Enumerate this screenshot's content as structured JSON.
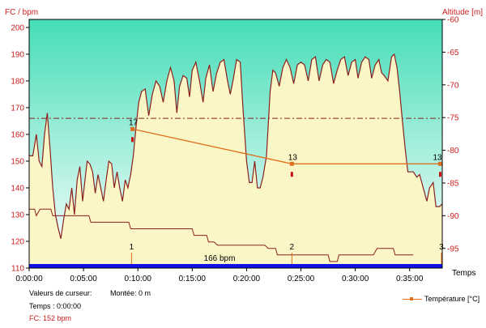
{
  "chart_data": {
    "type": "line",
    "y_left_label": "FC / bpm",
    "y_right_label": "Altitude [m]",
    "x_label": "Temps",
    "xlim": [
      0,
      2280
    ],
    "ylim_left": [
      110,
      203
    ],
    "ylim_right": [
      -60,
      -98
    ],
    "x_ticks": [
      {
        "t": 0,
        "label": "0:00:00"
      },
      {
        "t": 300,
        "label": "0:05:00"
      },
      {
        "t": 600,
        "label": "0:10:00"
      },
      {
        "t": 900,
        "label": "0:15:00"
      },
      {
        "t": 1200,
        "label": "0:20:00"
      },
      {
        "t": 1500,
        "label": "0:25:00"
      },
      {
        "t": 1800,
        "label": "0:30:00"
      },
      {
        "t": 2100,
        "label": "0:35:00"
      }
    ],
    "y_left_ticks": [
      110,
      120,
      130,
      140,
      150,
      160,
      170,
      180,
      190,
      200
    ],
    "y_right_ticks": [
      -60,
      -65,
      -70,
      -75,
      -80,
      -85,
      -90,
      -95
    ],
    "threshold": {
      "value": 166,
      "label": "166 bpm"
    },
    "heart_rate": {
      "name": "FC",
      "color": "#8b2020",
      "fill": "#fbf6c5",
      "points": [
        [
          0,
          152
        ],
        [
          20,
          152
        ],
        [
          40,
          160
        ],
        [
          55,
          150
        ],
        [
          70,
          148
        ],
        [
          85,
          160
        ],
        [
          100,
          168
        ],
        [
          115,
          155
        ],
        [
          130,
          140
        ],
        [
          145,
          130
        ],
        [
          160,
          125
        ],
        [
          175,
          121
        ],
        [
          190,
          128
        ],
        [
          205,
          134
        ],
        [
          220,
          132
        ],
        [
          235,
          140
        ],
        [
          250,
          130
        ],
        [
          265,
          143
        ],
        [
          280,
          148
        ],
        [
          295,
          135
        ],
        [
          305,
          141
        ],
        [
          320,
          150
        ],
        [
          335,
          149
        ],
        [
          350,
          146
        ],
        [
          365,
          138
        ],
        [
          380,
          145
        ],
        [
          395,
          140
        ],
        [
          410,
          135
        ],
        [
          425,
          143
        ],
        [
          440,
          150
        ],
        [
          455,
          149
        ],
        [
          470,
          140
        ],
        [
          485,
          146
        ],
        [
          500,
          140
        ],
        [
          515,
          135
        ],
        [
          530,
          143
        ],
        [
          545,
          140
        ],
        [
          560,
          145
        ],
        [
          575,
          152
        ],
        [
          590,
          163
        ],
        [
          605,
          172
        ],
        [
          620,
          176
        ],
        [
          640,
          177
        ],
        [
          660,
          167
        ],
        [
          680,
          175
        ],
        [
          700,
          180
        ],
        [
          720,
          178
        ],
        [
          740,
          172
        ],
        [
          760,
          180
        ],
        [
          780,
          185
        ],
        [
          800,
          180
        ],
        [
          815,
          168
        ],
        [
          830,
          178
        ],
        [
          850,
          182
        ],
        [
          870,
          181
        ],
        [
          885,
          174
        ],
        [
          900,
          184
        ],
        [
          920,
          187
        ],
        [
          940,
          180
        ],
        [
          960,
          172
        ],
        [
          975,
          181
        ],
        [
          995,
          186
        ],
        [
          1015,
          176
        ],
        [
          1035,
          183
        ],
        [
          1055,
          187
        ],
        [
          1075,
          188
        ],
        [
          1095,
          180
        ],
        [
          1110,
          175
        ],
        [
          1125,
          180
        ],
        [
          1145,
          188
        ],
        [
          1165,
          187
        ],
        [
          1180,
          170
        ],
        [
          1200,
          150
        ],
        [
          1215,
          142
        ],
        [
          1230,
          142
        ],
        [
          1245,
          150
        ],
        [
          1260,
          140
        ],
        [
          1275,
          140
        ],
        [
          1290,
          144
        ],
        [
          1310,
          152
        ],
        [
          1330,
          176
        ],
        [
          1345,
          184
        ],
        [
          1360,
          183
        ],
        [
          1380,
          178
        ],
        [
          1400,
          185
        ],
        [
          1420,
          188
        ],
        [
          1440,
          185
        ],
        [
          1460,
          179
        ],
        [
          1480,
          186
        ],
        [
          1500,
          187
        ],
        [
          1520,
          186
        ],
        [
          1540,
          180
        ],
        [
          1560,
          188
        ],
        [
          1580,
          189
        ],
        [
          1600,
          180
        ],
        [
          1620,
          186
        ],
        [
          1640,
          188
        ],
        [
          1660,
          187
        ],
        [
          1680,
          179
        ],
        [
          1700,
          184
        ],
        [
          1720,
          188
        ],
        [
          1740,
          189
        ],
        [
          1760,
          182
        ],
        [
          1780,
          187
        ],
        [
          1800,
          188
        ],
        [
          1815,
          181
        ],
        [
          1835,
          187
        ],
        [
          1855,
          189
        ],
        [
          1875,
          188
        ],
        [
          1890,
          181
        ],
        [
          1910,
          186
        ],
        [
          1930,
          188
        ],
        [
          1945,
          183
        ],
        [
          1960,
          182
        ],
        [
          1980,
          180
        ],
        [
          2000,
          189
        ],
        [
          2015,
          190
        ],
        [
          2030,
          185
        ],
        [
          2045,
          176
        ],
        [
          2060,
          165
        ],
        [
          2075,
          155
        ],
        [
          2090,
          146
        ],
        [
          2105,
          146
        ],
        [
          2120,
          146
        ],
        [
          2140,
          144
        ],
        [
          2155,
          145
        ],
        [
          2175,
          140
        ],
        [
          2195,
          135
        ],
        [
          2210,
          140
        ],
        [
          2230,
          142
        ],
        [
          2245,
          133
        ],
        [
          2265,
          133
        ],
        [
          2280,
          134
        ]
      ]
    },
    "temperature": {
      "name": "Température [°C]",
      "color": "#e07020",
      "points": [
        {
          "t": 570,
          "hr": 162,
          "label": "17"
        },
        {
          "t": 1450,
          "hr": 149,
          "label": "13"
        },
        {
          "t": 2280,
          "hr": 149,
          "label": "13"
        }
      ]
    },
    "altitude": {
      "name": "Altitude",
      "color": "#8b2020",
      "points": [
        [
          0,
          -89
        ],
        [
          30,
          -89
        ],
        [
          40,
          -90
        ],
        [
          60,
          -89
        ],
        [
          70,
          -89
        ],
        [
          120,
          -89
        ],
        [
          130,
          -90
        ],
        [
          150,
          -90
        ],
        [
          165,
          -90
        ],
        [
          270,
          -90
        ],
        [
          330,
          -90
        ],
        [
          340,
          -91
        ],
        [
          350,
          -91
        ],
        [
          550,
          -91
        ],
        [
          560,
          -92
        ],
        [
          900,
          -92
        ],
        [
          910,
          -93
        ],
        [
          980,
          -93
        ],
        [
          990,
          -94
        ],
        [
          1020,
          -94
        ],
        [
          1040,
          -94.5
        ],
        [
          1300,
          -94.5
        ],
        [
          1320,
          -95
        ],
        [
          1360,
          -95
        ],
        [
          1370,
          -96
        ],
        [
          1450,
          -96
        ],
        [
          1500,
          -96
        ],
        [
          1650,
          -96
        ],
        [
          1660,
          -97
        ],
        [
          1700,
          -97
        ],
        [
          1710,
          -96
        ],
        [
          1800,
          -96
        ],
        [
          1820,
          -96
        ],
        [
          1900,
          -96
        ],
        [
          1920,
          -95
        ],
        [
          2010,
          -95
        ],
        [
          2020,
          -96
        ],
        [
          2120,
          -96
        ]
      ]
    },
    "markers": [
      {
        "t": 565,
        "label": "1"
      },
      {
        "t": 1450,
        "label": "2"
      },
      {
        "t": 2280,
        "label": "3"
      }
    ]
  },
  "footer": {
    "cursor_values_label": "Valeurs de curseur:",
    "time_label": "Temps : 0:00:00",
    "climb_label": "Montée: 0 m",
    "hr_label": "FC: 152 bpm"
  },
  "legend": {
    "temperature_label": "Température [°C]"
  },
  "colors": {
    "plot_top": "#46ddb8",
    "plot_bottom": "#ffffff",
    "heart_fill": "#fbf6c5",
    "heart_line": "#8b2020",
    "threshold": "#8b2020",
    "temp": "#e07020",
    "bottom_bar": "#1010e8",
    "left_axis_text": "#c81e1e",
    "right_axis_text": "#c81e1e"
  }
}
